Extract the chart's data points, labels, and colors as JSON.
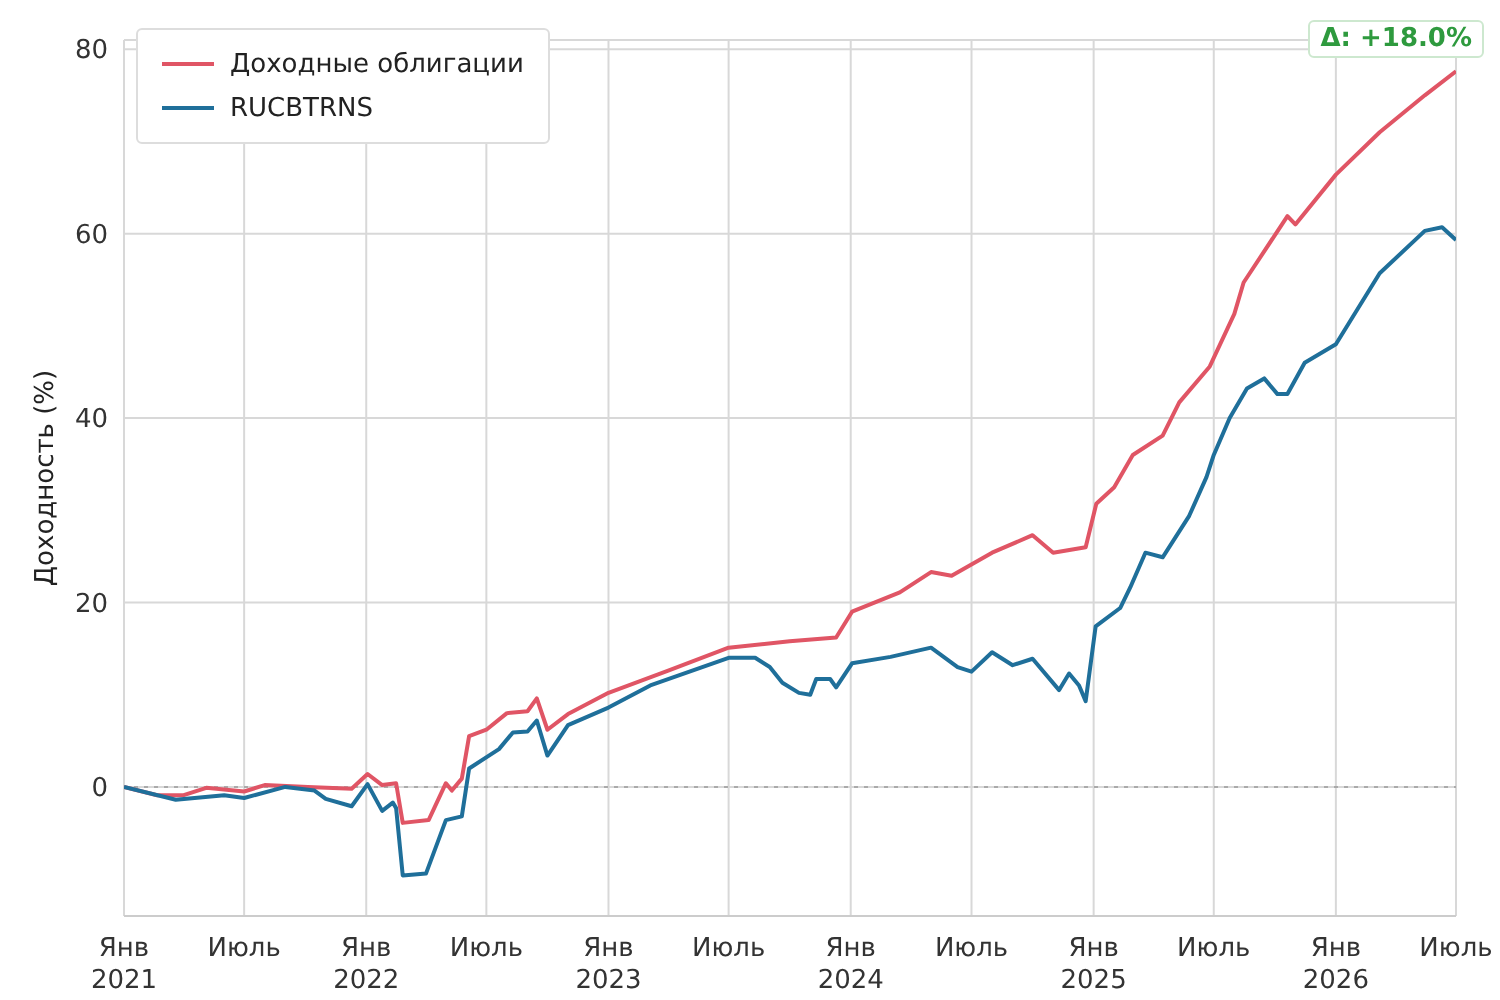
{
  "chart_data": {
    "type": "line",
    "ylabel": "Доходность (%)",
    "xlim": [
      "2021-01",
      "2026-07"
    ],
    "xticks": [
      {
        "value": "2021-01",
        "label": "Янв\n2021"
      },
      {
        "value": "2021-07",
        "label": "Июль"
      },
      {
        "value": "2022-01",
        "label": "Янв\n2022"
      },
      {
        "value": "2022-07",
        "label": "Июль"
      },
      {
        "value": "2023-01",
        "label": "Янв\n2023"
      },
      {
        "value": "2023-07",
        "label": "Июль"
      },
      {
        "value": "2024-01",
        "label": "Янв\n2024"
      },
      {
        "value": "2024-07",
        "label": "Июль"
      },
      {
        "value": "2025-01",
        "label": "Янв\n2025"
      },
      {
        "value": "2025-07",
        "label": "Июль"
      },
      {
        "value": "2026-01",
        "label": "Янв\n2026"
      },
      {
        "value": "2026-07",
        "label": "Июль"
      }
    ],
    "ylim": [
      -14,
      81
    ],
    "yticks": [
      0,
      20,
      40,
      60,
      80
    ],
    "grid": true,
    "legend": "top left",
    "marker": "none",
    "line_style": "solid",
    "ref_lines": [
      {
        "axis": "y",
        "value": 0,
        "color": "#aaaaaa",
        "line_style": "dotted"
      }
    ],
    "annotations": [
      "Δ: +18.0%"
    ],
    "series": [
      {
        "name": "Доходные облигации",
        "color": "#e05565",
        "x": [
          "2021-01-01",
          "2021-02-20",
          "2021-04-01",
          "2021-05-05",
          "2021-07-01",
          "2021-08-01",
          "2021-10-05",
          "2021-12-10",
          "2022-01-03",
          "2022-01-25",
          "2022-02-15",
          "2022-02-25",
          "2022-04-05",
          "2022-05-01",
          "2022-05-10",
          "2022-05-25",
          "2022-06-05",
          "2022-07-01",
          "2022-08-01",
          "2022-09-01",
          "2022-09-15",
          "2022-10-01",
          "2022-11-01",
          "2023-01-01",
          "2023-04-01",
          "2023-07-01",
          "2023-10-01",
          "2023-12-10",
          "2024-01-03",
          "2024-03-15",
          "2024-05-01",
          "2024-06-01",
          "2024-08-01",
          "2024-10-01",
          "2024-11-01",
          "2024-12-20",
          "2025-01-05",
          "2025-02-01",
          "2025-03-01",
          "2025-04-15",
          "2025-05-10",
          "2025-06-25",
          "2025-08-01",
          "2025-08-15",
          "2025-10-20",
          "2025-11-01",
          "2026-01-01",
          "2026-03-08",
          "2026-05-15",
          "2026-07-01"
        ],
        "values": [
          0,
          -0.9,
          -0.9,
          -0.1,
          -0.5,
          0.2,
          0,
          -0.2,
          1.4,
          0.2,
          0.4,
          -3.9,
          -3.6,
          0.4,
          -0.4,
          0.9,
          5.5,
          6.2,
          8,
          8.2,
          9.6,
          6.2,
          7.9,
          10.2,
          12.6,
          15.1,
          15.8,
          16.2,
          19,
          21.1,
          23.3,
          22.9,
          25.4,
          27.3,
          25.4,
          26,
          30.7,
          32.5,
          36,
          38.1,
          41.7,
          45.6,
          51.3,
          54.7,
          61.9,
          61,
          66.4,
          71,
          75,
          77.6
        ]
      },
      {
        "name": "RUCBTRNS",
        "color": "#1f6f9a",
        "x": [
          "2021-01-01",
          "2021-03-20",
          "2021-06-01",
          "2021-07-01",
          "2021-09-01",
          "2021-10-15",
          "2021-11-01",
          "2021-12-10",
          "2022-01-03",
          "2022-01-25",
          "2022-02-10",
          "2022-02-15",
          "2022-02-25",
          "2022-04-01",
          "2022-05-01",
          "2022-05-25",
          "2022-06-05",
          "2022-07-20",
          "2022-08-10",
          "2022-09-01",
          "2022-09-15",
          "2022-10-01",
          "2022-11-01",
          "2023-01-01",
          "2023-03-05",
          "2023-07-01",
          "2023-08-10",
          "2023-09-01",
          "2023-09-20",
          "2023-10-15",
          "2023-11-01",
          "2023-11-10",
          "2023-12-01",
          "2023-12-10",
          "2024-01-03",
          "2024-03-01",
          "2024-05-01",
          "2024-06-10",
          "2024-07-01",
          "2024-08-01",
          "2024-09-01",
          "2024-10-01",
          "2024-11-10",
          "2024-11-25",
          "2024-12-10",
          "2024-12-20",
          "2025-01-04",
          "2025-02-10",
          "2025-02-25",
          "2025-03-20",
          "2025-04-15",
          "2025-05-25",
          "2025-06-20",
          "2025-07-01",
          "2025-07-25",
          "2025-08-20",
          "2025-09-15",
          "2025-10-05",
          "2025-10-20",
          "2025-11-15",
          "2026-01-01",
          "2026-03-08",
          "2026-05-15",
          "2026-06-10",
          "2026-07-01"
        ],
        "values": [
          0,
          -1.4,
          -0.9,
          -1.2,
          0,
          -0.4,
          -1.3,
          -2.1,
          0.3,
          -2.6,
          -1.7,
          -2.3,
          -9.6,
          -9.4,
          -3.6,
          -3.2,
          2,
          4.1,
          5.9,
          6,
          7.2,
          3.4,
          6.7,
          8.6,
          11,
          14,
          14,
          13,
          11.3,
          10.2,
          10,
          11.7,
          11.7,
          10.8,
          13.4,
          14.1,
          15.1,
          13,
          12.5,
          14.6,
          13.2,
          13.9,
          10.5,
          12.3,
          11,
          9.3,
          17.4,
          19.4,
          21.6,
          25.4,
          24.9,
          29.4,
          33.6,
          36,
          40,
          43.2,
          44.3,
          42.6,
          42.6,
          46,
          48,
          55.7,
          60.3,
          60.7,
          59.3
        ]
      }
    ]
  }
}
